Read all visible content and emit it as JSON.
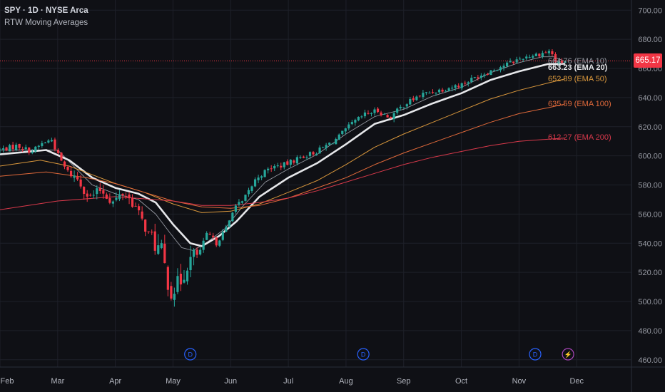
{
  "header": {
    "symbol": "SPY",
    "interval": "1D",
    "exchange": "NYSE Arca",
    "indicator": "RTW Moving Averages"
  },
  "last_price": "665.17",
  "colors": {
    "background": "#0f1015",
    "up": "#26a69a",
    "down": "#f23645",
    "ema10": "#9598a1",
    "ema20": "#e6e7ea",
    "ema50": "#d9973c",
    "ema100": "#e0693a",
    "ema200": "#d9394b",
    "event_marker": "#2962ff",
    "split_marker": "#ab47bc"
  },
  "ema_labels": [
    {
      "key": "ema10",
      "value": "664.76",
      "name": "EMA 10",
      "color": "#9598a1"
    },
    {
      "key": "ema20",
      "value": "663.23",
      "name": "EMA 20",
      "color": "#e6e7ea"
    },
    {
      "key": "ema50",
      "value": "652.89",
      "name": "EMA 50",
      "color": "#d9973c"
    },
    {
      "key": "ema100",
      "value": "635.59",
      "name": "EMA 100",
      "color": "#e0693a"
    },
    {
      "key": "ema200",
      "value": "612.27",
      "name": "EMA 200",
      "color": "#d9394b"
    }
  ],
  "event_markers": [
    {
      "month_pos": 3.3,
      "glyph": "D",
      "kind": "dividend"
    },
    {
      "month_pos": 6.3,
      "glyph": "D",
      "kind": "dividend"
    },
    {
      "month_pos": 9.28,
      "glyph": "D",
      "kind": "dividend"
    },
    {
      "month_pos": 9.85,
      "glyph": "⚡",
      "kind": "event"
    }
  ],
  "chart_data": {
    "type": "candlestick",
    "x_axis": {
      "type": "date",
      "tick_labels": [
        "Feb",
        "Mar",
        "Apr",
        "May",
        "Jun",
        "Jul",
        "Aug",
        "Sep",
        "Oct",
        "Nov",
        "Dec"
      ],
      "range_months": [
        0.0,
        10.95
      ]
    },
    "y_axis": {
      "ticks": [
        460,
        480,
        500,
        520,
        540,
        560,
        580,
        600,
        620,
        640,
        660,
        680,
        700
      ],
      "tick_labels": [
        "460.00",
        "480.00",
        "500.00",
        "520.00",
        "540.00",
        "560.00",
        "580.00",
        "600.00",
        "620.00",
        "640.00",
        "660.00",
        "680.00",
        "700.00"
      ],
      "range": [
        455,
        707
      ],
      "position": "right"
    },
    "grid": true,
    "price_path": [
      [
        0.0,
        604
      ],
      [
        0.3,
        607
      ],
      [
        0.55,
        603
      ],
      [
        0.75,
        609
      ],
      [
        0.9,
        611
      ],
      [
        1.0,
        601
      ],
      [
        1.15,
        590
      ],
      [
        1.35,
        584
      ],
      [
        1.55,
        571
      ],
      [
        1.75,
        577
      ],
      [
        1.95,
        568
      ],
      [
        2.15,
        575
      ],
      [
        2.35,
        565
      ],
      [
        2.55,
        548
      ],
      [
        2.8,
        533
      ],
      [
        2.95,
        508
      ],
      [
        3.1,
        511
      ],
      [
        3.25,
        527
      ],
      [
        3.45,
        533
      ],
      [
        3.6,
        547
      ],
      [
        3.75,
        540
      ],
      [
        3.95,
        552
      ],
      [
        4.05,
        565
      ],
      [
        4.2,
        568
      ],
      [
        4.45,
        585
      ],
      [
        4.7,
        592
      ],
      [
        4.95,
        594
      ],
      [
        5.2,
        599
      ],
      [
        5.5,
        603
      ],
      [
        5.85,
        612
      ],
      [
        6.1,
        622
      ],
      [
        6.35,
        629
      ],
      [
        6.55,
        631
      ],
      [
        6.75,
        626
      ],
      [
        7.0,
        635
      ],
      [
        7.3,
        642
      ],
      [
        7.6,
        645
      ],
      [
        8.0,
        649
      ],
      [
        8.3,
        655
      ],
      [
        8.6,
        660
      ],
      [
        8.85,
        664
      ],
      [
        9.1,
        668
      ],
      [
        9.35,
        670
      ],
      [
        9.55,
        672
      ],
      [
        9.65,
        663
      ],
      [
        9.8,
        665.17
      ]
    ],
    "candle_count": 176,
    "ema_series": [
      {
        "name": "EMA 10",
        "points": [
          [
            0.0,
            604
          ],
          [
            1.0,
            604
          ],
          [
            1.3,
            592
          ],
          [
            1.6,
            580
          ],
          [
            2.0,
            574
          ],
          [
            2.4,
            570
          ],
          [
            2.7,
            560
          ],
          [
            2.95,
            547
          ],
          [
            3.15,
            537
          ],
          [
            3.35,
            535
          ],
          [
            3.6,
            541
          ],
          [
            3.9,
            550
          ],
          [
            4.2,
            565
          ],
          [
            4.6,
            582
          ],
          [
            5.0,
            591
          ],
          [
            5.5,
            601
          ],
          [
            6.0,
            615
          ],
          [
            6.5,
            627
          ],
          [
            7.0,
            632
          ],
          [
            7.5,
            641
          ],
          [
            8.0,
            647
          ],
          [
            8.5,
            657
          ],
          [
            9.0,
            664
          ],
          [
            9.4,
            668
          ],
          [
            9.6,
            668
          ],
          [
            9.8,
            664.76
          ]
        ]
      },
      {
        "name": "EMA 20",
        "points": [
          [
            0.0,
            601
          ],
          [
            0.8,
            604
          ],
          [
            1.2,
            597
          ],
          [
            1.6,
            585
          ],
          [
            2.0,
            578
          ],
          [
            2.4,
            574
          ],
          [
            2.7,
            568
          ],
          [
            3.0,
            553
          ],
          [
            3.3,
            540
          ],
          [
            3.5,
            538
          ],
          [
            3.8,
            545
          ],
          [
            4.1,
            555
          ],
          [
            4.5,
            572
          ],
          [
            5.0,
            585
          ],
          [
            5.5,
            595
          ],
          [
            6.0,
            608
          ],
          [
            6.5,
            622
          ],
          [
            7.0,
            628
          ],
          [
            7.5,
            636
          ],
          [
            8.0,
            643
          ],
          [
            8.5,
            652
          ],
          [
            9.0,
            658
          ],
          [
            9.5,
            663
          ],
          [
            9.8,
            663.23
          ]
        ]
      },
      {
        "name": "EMA 50",
        "points": [
          [
            0.0,
            593
          ],
          [
            0.7,
            597
          ],
          [
            1.2,
            593
          ],
          [
            1.6,
            587
          ],
          [
            2.0,
            581
          ],
          [
            2.5,
            575
          ],
          [
            3.0,
            567
          ],
          [
            3.5,
            561
          ],
          [
            4.0,
            562
          ],
          [
            4.5,
            567
          ],
          [
            5.0,
            575
          ],
          [
            5.5,
            583
          ],
          [
            6.0,
            594
          ],
          [
            6.5,
            606
          ],
          [
            7.0,
            615
          ],
          [
            7.5,
            623
          ],
          [
            8.0,
            631
          ],
          [
            8.5,
            639
          ],
          [
            9.0,
            645
          ],
          [
            9.5,
            650
          ],
          [
            9.8,
            652.89
          ]
        ]
      },
      {
        "name": "EMA 100",
        "points": [
          [
            0.0,
            586
          ],
          [
            0.8,
            589
          ],
          [
            1.5,
            585
          ],
          [
            2.0,
            581
          ],
          [
            2.5,
            575
          ],
          [
            3.0,
            569
          ],
          [
            3.5,
            565
          ],
          [
            4.0,
            564
          ],
          [
            4.5,
            566
          ],
          [
            5.0,
            571
          ],
          [
            5.5,
            578
          ],
          [
            6.0,
            585
          ],
          [
            6.5,
            594
          ],
          [
            7.0,
            602
          ],
          [
            7.5,
            609
          ],
          [
            8.0,
            616
          ],
          [
            8.5,
            623
          ],
          [
            9.0,
            629
          ],
          [
            9.5,
            633
          ],
          [
            9.8,
            635.59
          ]
        ]
      },
      {
        "name": "EMA 200",
        "points": [
          [
            0.0,
            563
          ],
          [
            1.0,
            569
          ],
          [
            2.0,
            572
          ],
          [
            3.0,
            569
          ],
          [
            3.5,
            566
          ],
          [
            4.0,
            566
          ],
          [
            4.5,
            568
          ],
          [
            5.0,
            571
          ],
          [
            5.5,
            576
          ],
          [
            6.0,
            582
          ],
          [
            6.5,
            588
          ],
          [
            7.0,
            594
          ],
          [
            7.5,
            599
          ],
          [
            8.0,
            603
          ],
          [
            8.5,
            607
          ],
          [
            9.0,
            610
          ],
          [
            9.8,
            612.27
          ]
        ]
      }
    ]
  }
}
